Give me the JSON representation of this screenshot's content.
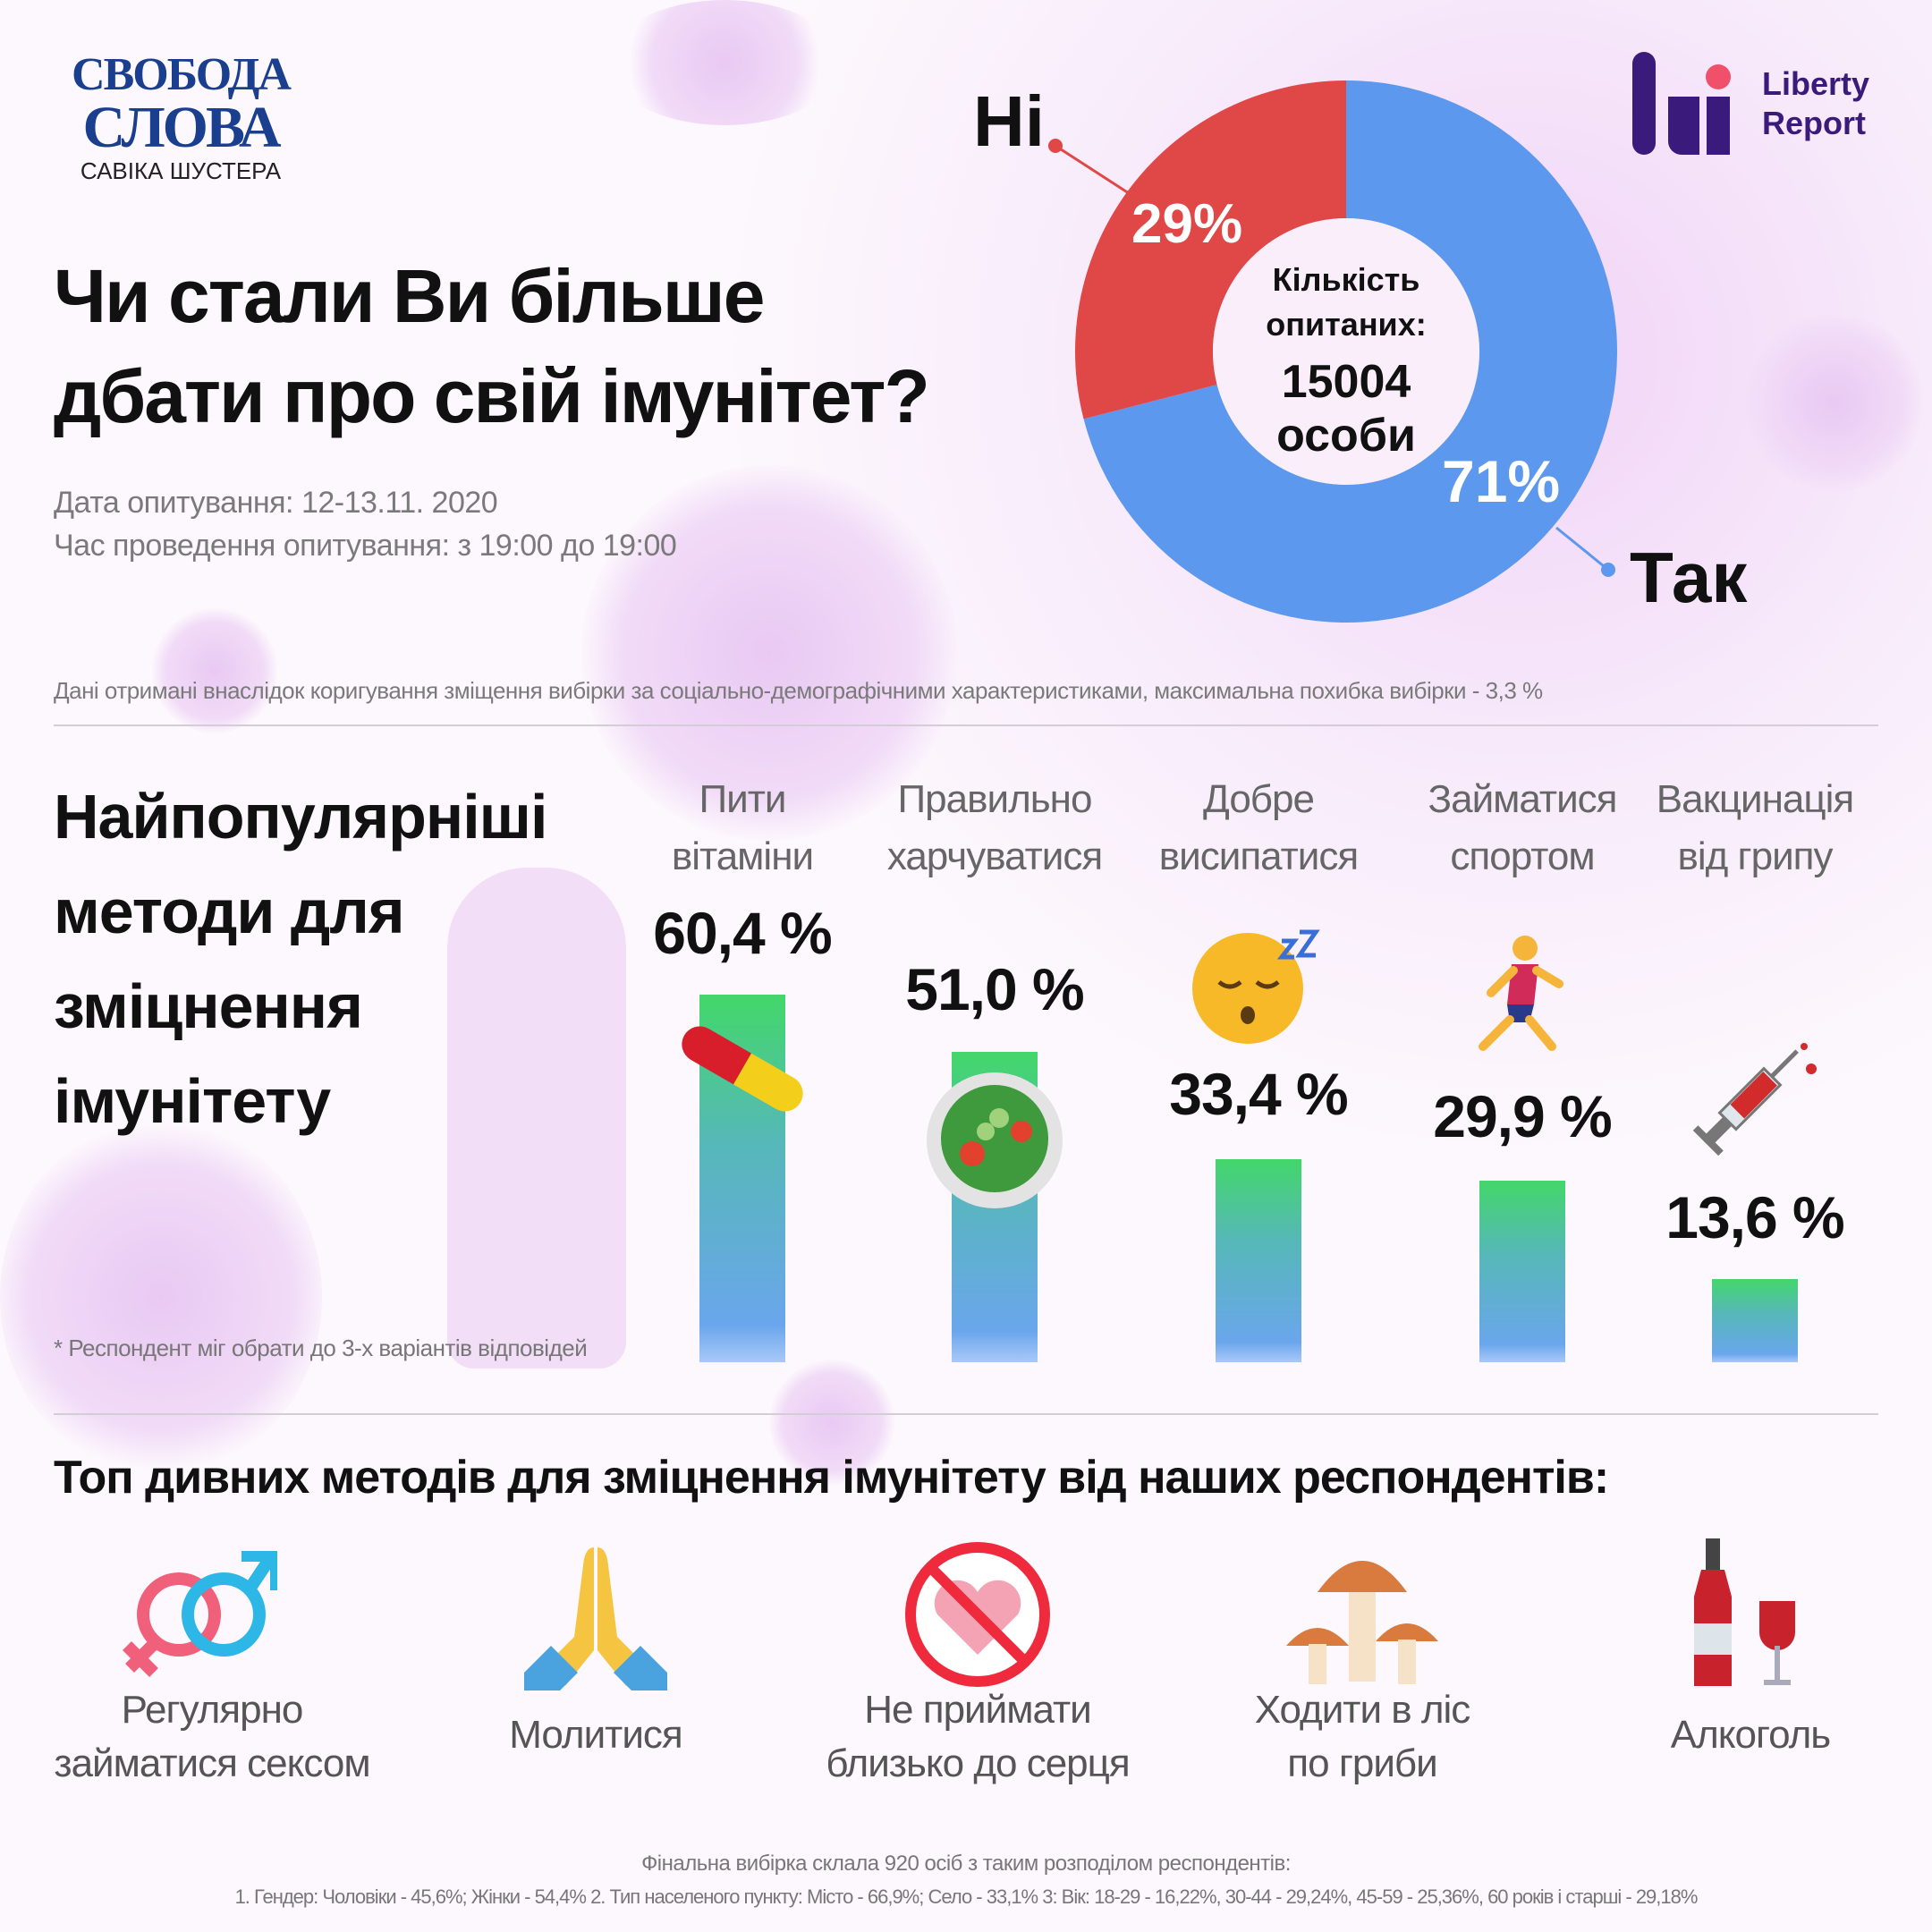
{
  "logos": {
    "svoboda_line1": "СВОБОДА",
    "svoboda_line2": "СЛОВА",
    "svoboda_line3": "САВІКА ШУСТЕРА",
    "liberty_line1": "Liberty",
    "liberty_line2": "Report"
  },
  "title": {
    "line1": "Чи стали Ви більше",
    "line2": "дбати про свій імунітет?"
  },
  "meta": {
    "date": "Дата опитування:  12-13.11. 2020",
    "time": "Час проведення опитування: з 19:00 до 19:00"
  },
  "donut": {
    "no_label": "Ні",
    "yes_label": "Так",
    "no_pct": "29%",
    "yes_pct": "71%",
    "no_value": 29,
    "yes_value": 71,
    "center_line1": "Кількість",
    "center_line2": "опитаних:",
    "center_count": "15004",
    "center_unit": "особи",
    "colors": {
      "no": "#e04848",
      "yes": "#5b98ee"
    }
  },
  "disclaimer": "Дані отримані внаслідок коригування зміщення вибірки за соціально-демографічними характеристиками, максимальна похибка вибірки - 3,3 %",
  "methods": {
    "heading": [
      "Найпопулярніші",
      "методи для",
      "зміцнення",
      "імунітету"
    ],
    "items": [
      {
        "line1": "Пити",
        "line2": "вітаміни",
        "pct": "60,4 %",
        "value": 60.4,
        "icon": "pill-icon"
      },
      {
        "line1": "Правильно",
        "line2": "харчуватися",
        "pct": "51,0 %",
        "value": 51.0,
        "icon": "salad-icon"
      },
      {
        "line1": "Добре",
        "line2": "висипатися",
        "pct": "33,4 %",
        "value": 33.4,
        "icon": "sleeping-face-icon"
      },
      {
        "line1": "Займатися",
        "line2": "спортом",
        "pct": "29,9 %",
        "value": 29.9,
        "icon": "runner-icon"
      },
      {
        "line1": "Вакцинація",
        "line2": "від грипу",
        "pct": "13,6 %",
        "value": 13.6,
        "icon": "syringe-icon"
      }
    ],
    "note": "* Респондент міг обрати до 3-х варіантів відповідей"
  },
  "odd": {
    "heading": "Топ дивних методів для зміцнення імунітету від наших респондентів:",
    "items": [
      {
        "line1": "Регулярно",
        "line2": "займатися сексом"
      },
      {
        "line1": "Молитися",
        "line2": ""
      },
      {
        "line1": "Не приймати",
        "line2": "близько до серця"
      },
      {
        "line1": "Ходити в ліс",
        "line2": "по гриби"
      },
      {
        "line1": "Алкоголь",
        "line2": ""
      }
    ]
  },
  "footer": {
    "line1": "Фінальна вибірка склала 920 осіб з таким розподілом респондентів:",
    "line2": "1. Гендер: Чоловіки - 45,6%; Жінки - 54,4% 2. Тип населеного пункту: Місто - 66,9%; Село - 33,1% 3: Вік: 18-29 - 16,22%, 30-44 - 29,24%, 45-59 - 25,36%, 60 років і старші - 29,18%"
  }
}
